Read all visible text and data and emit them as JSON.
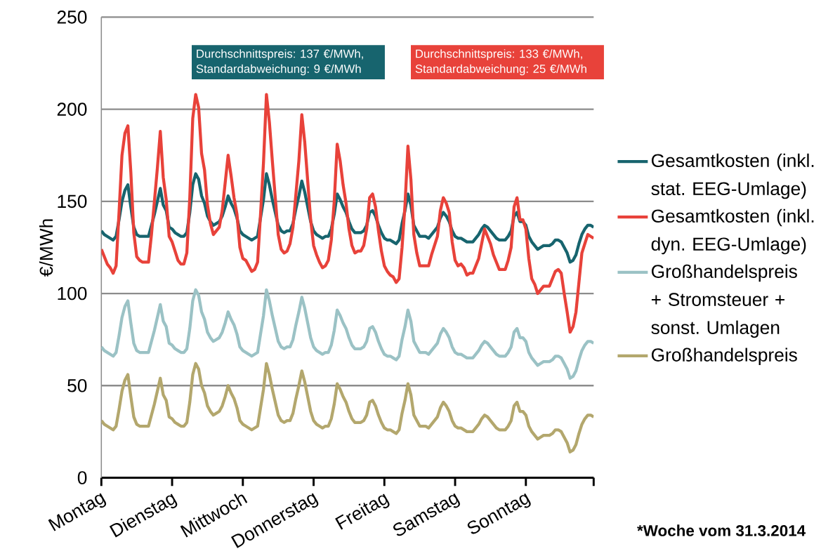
{
  "chart_data": {
    "type": "line",
    "ylabel": "€/MWh",
    "categories": [
      "Montag",
      null,
      null,
      null,
      null,
      null,
      null,
      null,
      null,
      null,
      null,
      null,
      null,
      null,
      null,
      null,
      null,
      null,
      null,
      null,
      null,
      null,
      null,
      null,
      "Dienstag",
      null,
      null,
      null,
      null,
      null,
      null,
      null,
      null,
      null,
      null,
      null,
      null,
      null,
      null,
      null,
      null,
      null,
      null,
      null,
      null,
      null,
      null,
      null,
      "Mittwoch",
      null,
      null,
      null,
      null,
      null,
      null,
      null,
      null,
      null,
      null,
      null,
      null,
      null,
      null,
      null,
      null,
      null,
      null,
      null,
      null,
      null,
      null,
      null,
      "Donnerstag",
      null,
      null,
      null,
      null,
      null,
      null,
      null,
      null,
      null,
      null,
      null,
      null,
      null,
      null,
      null,
      null,
      null,
      null,
      null,
      null,
      null,
      null,
      null,
      "Freitag",
      null,
      null,
      null,
      null,
      null,
      null,
      null,
      null,
      null,
      null,
      null,
      null,
      null,
      null,
      null,
      null,
      null,
      null,
      null,
      null,
      null,
      null,
      null,
      "Samstag",
      null,
      null,
      null,
      null,
      null,
      null,
      null,
      null,
      null,
      null,
      null,
      null,
      null,
      null,
      null,
      null,
      null,
      null,
      null,
      null,
      null,
      null,
      null,
      "Sonntag",
      null,
      null,
      null,
      null,
      null,
      null,
      null,
      null,
      null,
      null,
      null,
      null,
      null,
      null,
      null,
      null,
      null,
      null,
      null,
      null,
      null,
      null,
      null
    ],
    "series": [
      {
        "name": "Gesamtkosten (inkl. stat. EEG-Umlage)",
        "color": "#17646e",
        "values": [
          134,
          132,
          131,
          130,
          129,
          131,
          140,
          150,
          156,
          159,
          147,
          136,
          132,
          131,
          131,
          131,
          131,
          137,
          143,
          150,
          157,
          148,
          145,
          136,
          135,
          133,
          132,
          131,
          131,
          133,
          144,
          159,
          165,
          162,
          153,
          149,
          142,
          139,
          137,
          138,
          139,
          142,
          147,
          153,
          149,
          146,
          141,
          134,
          132,
          131,
          130,
          129,
          130,
          131,
          141,
          151,
          165,
          159,
          151,
          144,
          137,
          134,
          133,
          134,
          134,
          138,
          146,
          153,
          161,
          155,
          147,
          139,
          134,
          132,
          131,
          130,
          131,
          131,
          135,
          143,
          154,
          151,
          147,
          144,
          139,
          135,
          133,
          133,
          133,
          134,
          137,
          144,
          145,
          142,
          137,
          133,
          130,
          129,
          129,
          128,
          127,
          129,
          138,
          145,
          154,
          148,
          137,
          134,
          131,
          131,
          131,
          130,
          132,
          134,
          136,
          141,
          144,
          142,
          139,
          134,
          131,
          130,
          130,
          129,
          128,
          128,
          128,
          130,
          132,
          135,
          137,
          136,
          134,
          132,
          130,
          129,
          129,
          129,
          131,
          134,
          142,
          144,
          139,
          139,
          137,
          131,
          128,
          126,
          124,
          125,
          126,
          126,
          126,
          127,
          129,
          129,
          128,
          125,
          122,
          117,
          118,
          121,
          127,
          132,
          135,
          137,
          137,
          136
        ]
      },
      {
        "name": "Gesamtkosten (inkl. dyn. EEG-Umlage)",
        "color": "#e8423a",
        "values": [
          124,
          120,
          116,
          114,
          111,
          115,
          144,
          175,
          187,
          191,
          166,
          133,
          120,
          118,
          117,
          117,
          117,
          132,
          150,
          168,
          188,
          163,
          151,
          131,
          128,
          123,
          118,
          116,
          116,
          122,
          152,
          195,
          208,
          201,
          176,
          167,
          148,
          138,
          132,
          134,
          136,
          145,
          160,
          175,
          164,
          152,
          143,
          125,
          119,
          118,
          115,
          112,
          113,
          117,
          143,
          171,
          208,
          193,
          172,
          152,
          132,
          124,
          122,
          123,
          127,
          136,
          154,
          172,
          197,
          182,
          161,
          140,
          126,
          121,
          117,
          114,
          115,
          118,
          129,
          150,
          181,
          172,
          159,
          149,
          135,
          126,
          122,
          123,
          123,
          126,
          135,
          152,
          154,
          147,
          134,
          123,
          115,
          112,
          110,
          109,
          106,
          108,
          125,
          148,
          180,
          162,
          132,
          122,
          115,
          115,
          115,
          115,
          121,
          126,
          131,
          145,
          152,
          149,
          144,
          128,
          118,
          115,
          116,
          114,
          110,
          111,
          111,
          115,
          119,
          127,
          135,
          131,
          127,
          121,
          117,
          113,
          113,
          113,
          118,
          125,
          147,
          152,
          140,
          140,
          135,
          119,
          108,
          105,
          100,
          102,
          104,
          104,
          104,
          108,
          112,
          113,
          111,
          100,
          90,
          79,
          82,
          90,
          106,
          122,
          127,
          132,
          131,
          130
        ]
      },
      {
        "name": "Großhandelspreis + Stromsteuer + sonst. Umlagen",
        "color": "#9bc2c5",
        "values": [
          71,
          69,
          68,
          67,
          66,
          68,
          77,
          87,
          93,
          96,
          84,
          73,
          69,
          68,
          68,
          68,
          68,
          74,
          80,
          87,
          94,
          85,
          82,
          73,
          72,
          70,
          69,
          68,
          68,
          70,
          81,
          96,
          102,
          99,
          90,
          86,
          79,
          76,
          74,
          75,
          76,
          79,
          84,
          90,
          86,
          83,
          78,
          71,
          69,
          68,
          67,
          66,
          67,
          68,
          78,
          88,
          102,
          96,
          88,
          81,
          74,
          71,
          70,
          71,
          71,
          75,
          83,
          90,
          98,
          92,
          84,
          76,
          71,
          69,
          68,
          67,
          68,
          68,
          72,
          80,
          91,
          88,
          84,
          81,
          76,
          72,
          70,
          70,
          70,
          71,
          74,
          81,
          82,
          79,
          74,
          70,
          67,
          66,
          66,
          65,
          64,
          66,
          75,
          82,
          91,
          85,
          74,
          71,
          68,
          68,
          68,
          67,
          69,
          71,
          73,
          78,
          81,
          79,
          76,
          71,
          68,
          67,
          67,
          66,
          65,
          65,
          65,
          67,
          69,
          72,
          74,
          73,
          71,
          69,
          67,
          66,
          66,
          66,
          68,
          71,
          79,
          81,
          76,
          76,
          74,
          68,
          65,
          63,
          61,
          62,
          63,
          63,
          63,
          64,
          66,
          66,
          65,
          62,
          59,
          54,
          55,
          58,
          64,
          69,
          72,
          74,
          74,
          73
        ]
      },
      {
        "name": "Großhandelspreis",
        "color": "#b3a76d",
        "values": [
          31,
          29,
          28,
          27,
          26,
          28,
          37,
          47,
          53,
          56,
          44,
          33,
          29,
          28,
          28,
          28,
          28,
          34,
          40,
          47,
          54,
          45,
          42,
          33,
          32,
          30,
          29,
          28,
          28,
          30,
          41,
          56,
          62,
          59,
          50,
          46,
          39,
          36,
          34,
          35,
          36,
          39,
          44,
          50,
          46,
          43,
          38,
          31,
          29,
          28,
          27,
          26,
          27,
          28,
          38,
          48,
          62,
          56,
          48,
          41,
          34,
          31,
          30,
          31,
          31,
          35,
          43,
          50,
          58,
          52,
          44,
          36,
          31,
          29,
          28,
          27,
          28,
          28,
          32,
          40,
          51,
          48,
          44,
          41,
          36,
          32,
          30,
          30,
          30,
          31,
          34,
          41,
          42,
          39,
          34,
          30,
          27,
          26,
          26,
          25,
          24,
          26,
          35,
          42,
          51,
          45,
          34,
          31,
          28,
          28,
          28,
          27,
          29,
          31,
          33,
          38,
          41,
          39,
          36,
          31,
          28,
          27,
          27,
          26,
          25,
          25,
          25,
          27,
          29,
          32,
          34,
          33,
          31,
          29,
          27,
          26,
          26,
          26,
          28,
          31,
          39,
          41,
          36,
          36,
          34,
          28,
          25,
          23,
          21,
          22,
          23,
          23,
          23,
          24,
          26,
          26,
          25,
          22,
          19,
          14,
          15,
          18,
          24,
          29,
          32,
          34,
          34,
          33
        ]
      }
    ],
    "ylim": [
      0,
      250
    ],
    "yticks": [
      0,
      50,
      100,
      150,
      200,
      250
    ],
    "grid": "y",
    "legend": "right",
    "annotations": [
      "Durchschnittspreis: 137 €/MWh, Standardabweichung: 9 €/MWh",
      "Durchschnittspreis: 133 €/MWh, Standardabweichung: 25 €/MWh",
      "*Woche vom 31.3.2014"
    ]
  }
}
